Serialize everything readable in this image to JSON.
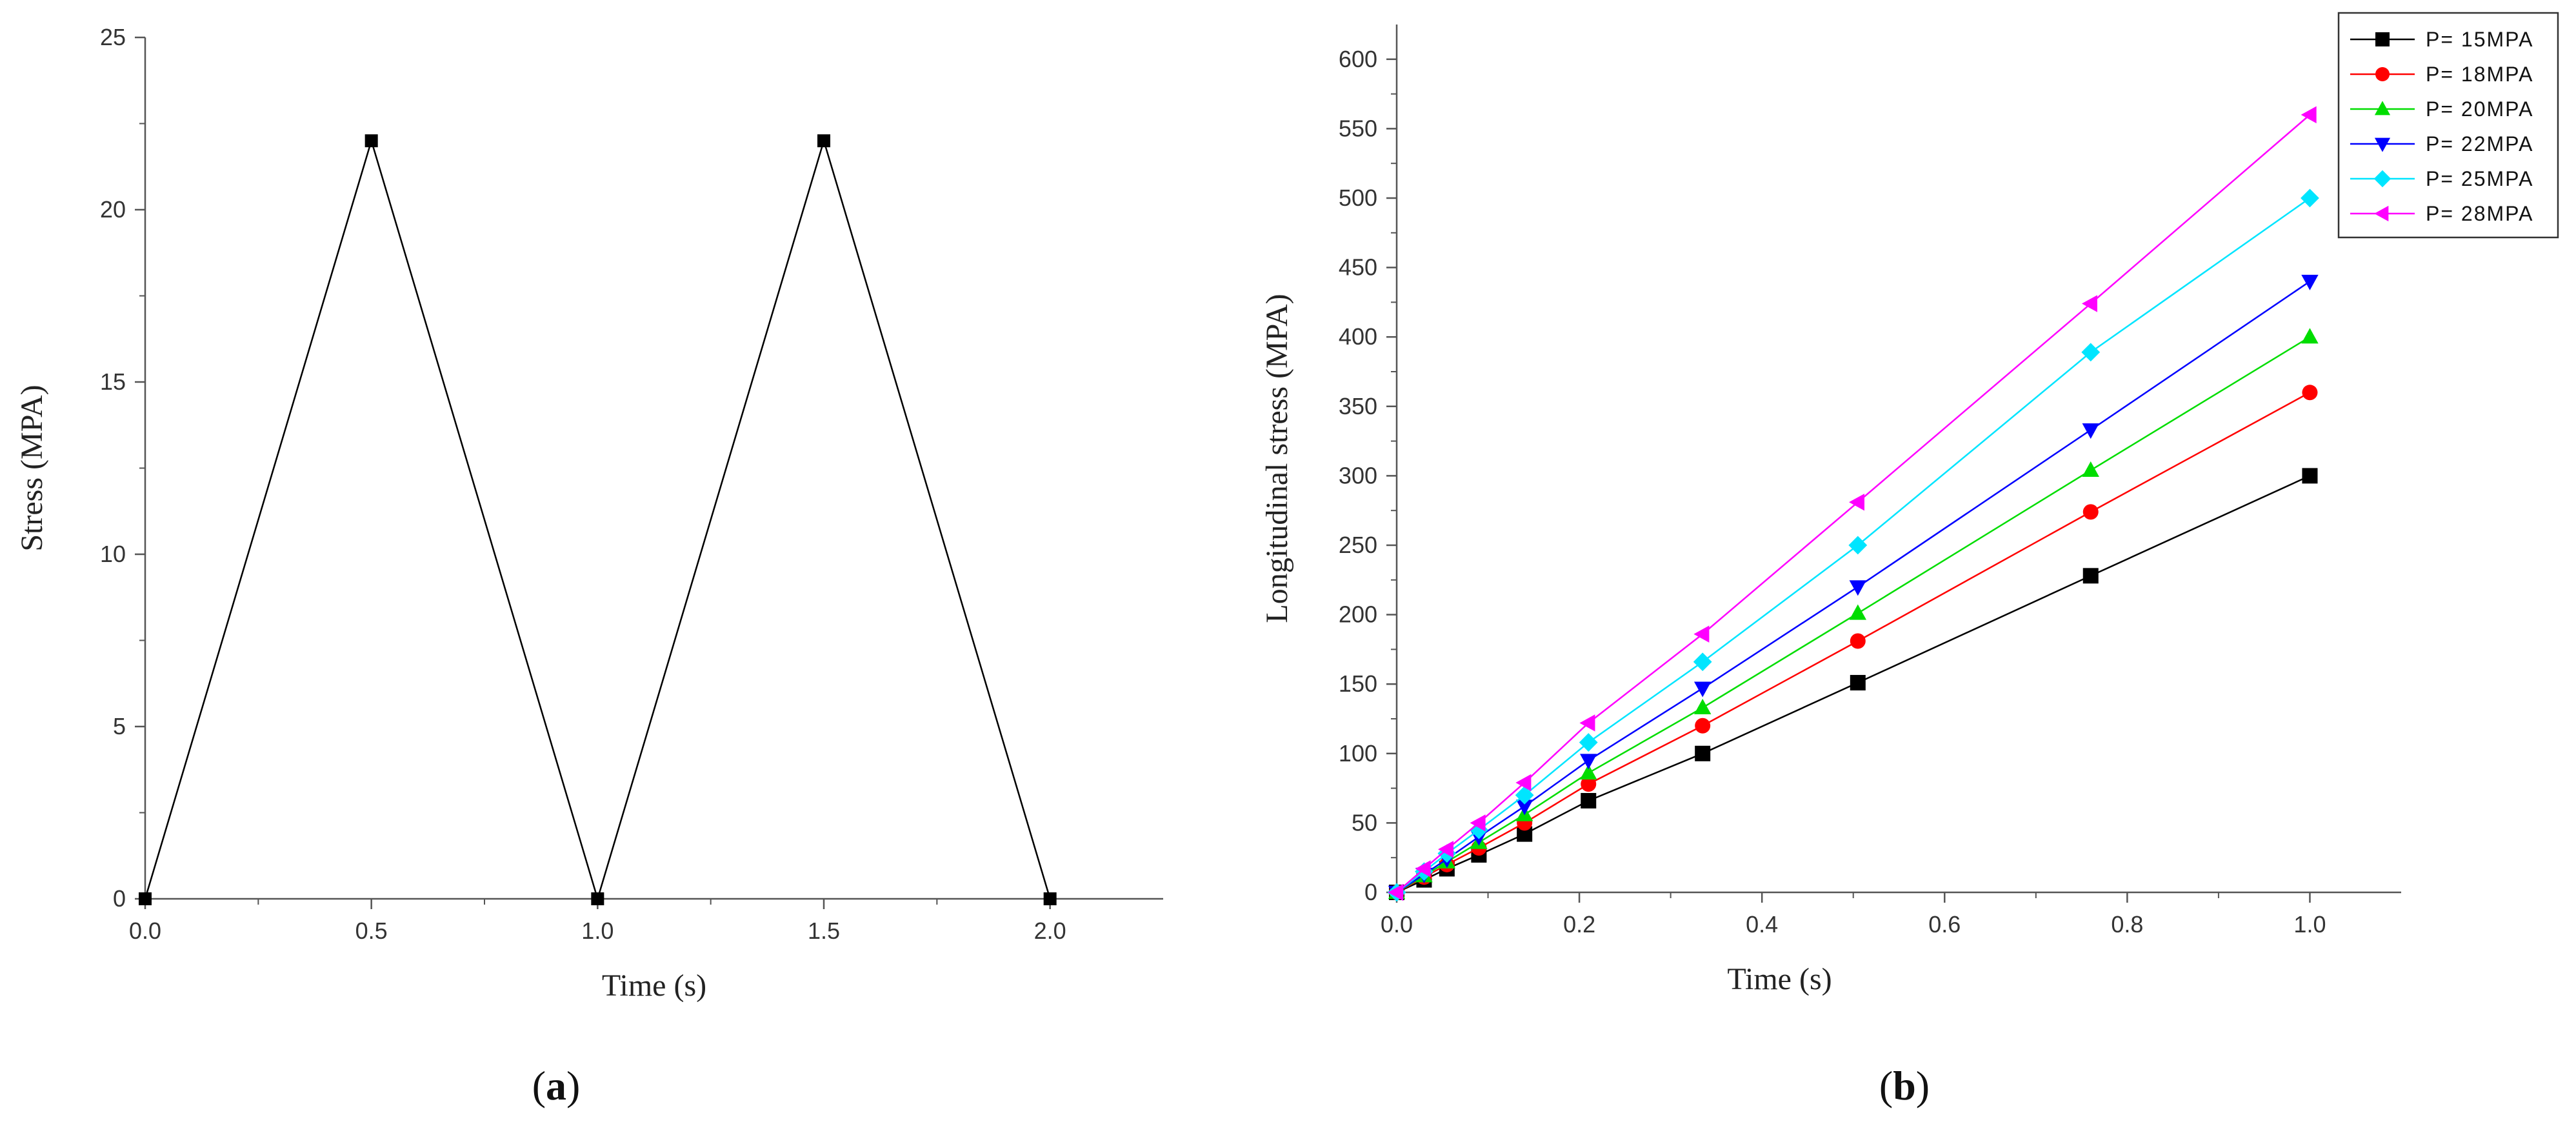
{
  "chart_data": [
    {
      "panel": "(a)",
      "type": "line",
      "title": "",
      "xlabel": "Time (s)",
      "ylabel": "Stress (MPA)",
      "xlim": [
        0,
        2.25
      ],
      "ylim": [
        0,
        25
      ],
      "xticks": [
        "0.0",
        "0.5",
        "1.0",
        "1.5",
        "2.0"
      ],
      "yticks": [
        "0",
        "5",
        "10",
        "15",
        "20",
        "25"
      ],
      "grid": false,
      "series": [
        {
          "x": [
            0,
            0.5,
            1.0,
            1.5,
            2.0
          ],
          "y": [
            0,
            22,
            0,
            22,
            0
          ],
          "color": "#000000",
          "marker": "square"
        }
      ]
    },
    {
      "panel": "(b)",
      "type": "line",
      "title": "",
      "xlabel": "Time (s)",
      "ylabel": "Longitudinal stress (MPA)",
      "xlim": [
        0,
        1.1
      ],
      "ylim": [
        0,
        625
      ],
      "xticks": [
        "0.0",
        "0.2",
        "0.4",
        "0.6",
        "0.8",
        "1.0"
      ],
      "yticks": [
        "0",
        "50",
        "100",
        "150",
        "200",
        "250",
        "300",
        "350",
        "400",
        "450",
        "500",
        "550",
        "600"
      ],
      "grid": false,
      "legend": "top-right",
      "x": [
        0,
        0.03,
        0.055,
        0.09,
        0.14,
        0.21,
        0.335,
        0.505,
        0.76,
        1.0
      ],
      "series": [
        {
          "name": "P= 15MPA",
          "color": "#000000",
          "marker": "square",
          "values": [
            0,
            9,
            17,
            27,
            42,
            66,
            100,
            151,
            228,
            300
          ]
        },
        {
          "name": "P= 18MPA",
          "color": "#ff0000",
          "marker": "circle",
          "values": [
            0,
            11,
            20,
            32,
            50,
            78,
            120,
            181,
            274,
            360
          ]
        },
        {
          "name": "P= 20MPA",
          "color": "#00dd00",
          "marker": "triangle-up",
          "values": [
            0,
            12,
            22,
            36,
            56,
            86,
            133,
            201,
            304,
            400
          ]
        },
        {
          "name": "P= 22MPA",
          "color": "#0000ff",
          "marker": "triangle-down",
          "values": [
            0,
            13,
            24,
            40,
            62,
            95,
            147,
            220,
            333,
            440
          ]
        },
        {
          "name": "P= 25MPA",
          "color": "#00e5ff",
          "marker": "diamond",
          "values": [
            0,
            15,
            28,
            45,
            70,
            108,
            166,
            250,
            389,
            500
          ]
        },
        {
          "name": "P= 28MPA",
          "color": "#ff00ff",
          "marker": "triangle-left",
          "values": [
            0,
            17,
            31,
            50,
            79,
            122,
            186,
            281,
            424,
            560
          ]
        }
      ]
    }
  ],
  "panel_labels": {
    "a": {
      "open": "(",
      "letter": "a",
      "close": ")"
    },
    "b": {
      "open": "(",
      "letter": "b",
      "close": ")"
    }
  }
}
